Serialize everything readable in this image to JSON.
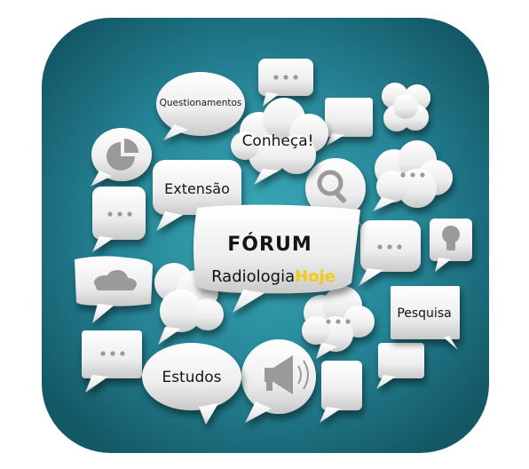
{
  "forum": {
    "title": "FÓRUM",
    "brand_part1": "Radiologia",
    "brand_part2": "Hoje"
  },
  "bubbles": {
    "questionamentos": "Questionamentos",
    "conheca": "Conheça!",
    "extensao": "Extensão",
    "pesquisa": "Pesquisa",
    "estudos": "Estudos"
  },
  "icons": [
    "pie-chart-icon",
    "magnifier-icon",
    "lightbulb-icon",
    "cloud-icon",
    "megaphone-icon",
    "ellipsis-icon"
  ],
  "colors": {
    "background_teal": "#1f6f80",
    "background_center": "#2f98a8",
    "bubble_light": "#f4f4f4",
    "bubble_shade": "#bfbfbf",
    "icon_gray": "#9a9a9a",
    "accent_yellow": "#f2cc12"
  }
}
